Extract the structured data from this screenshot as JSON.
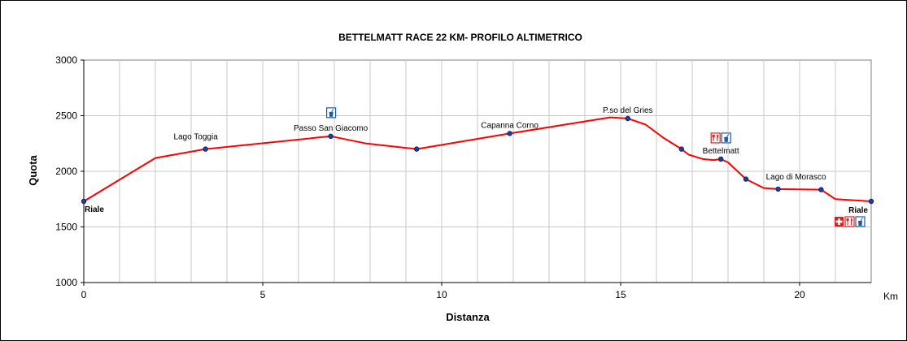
{
  "chart_data": {
    "type": "line",
    "title": "BETTELMATT RACE 22 KM- PROFILO ALTIMETRICO",
    "xlabel": "Distanza",
    "ylabel": "Quota",
    "x_unit": "Km",
    "xlim": [
      0,
      22
    ],
    "ylim": [
      1000,
      3000
    ],
    "x_ticks": [
      "0",
      "5",
      "10",
      "15",
      "20"
    ],
    "y_ticks": [
      "1000",
      "1500",
      "2000",
      "2500",
      "3000"
    ],
    "grid": true,
    "line_color": "#ff0000",
    "marker_color": "#1a3fa0",
    "series": [
      {
        "x": [
          0,
          2,
          3.4,
          6.9,
          7.9,
          9.3,
          11.9,
          14.7,
          15.2,
          15.7,
          16.2,
          16.7,
          16.9,
          17.3,
          17.6,
          17.8,
          18.0,
          18.5,
          19.0,
          19.4,
          20.6,
          21.0,
          22.0
        ],
        "y": [
          1730,
          2120,
          2200,
          2315,
          2250,
          2200,
          2340,
          2485,
          2475,
          2420,
          2300,
          2200,
          2150,
          2110,
          2100,
          2110,
          2080,
          1930,
          1850,
          1840,
          1835,
          1750,
          1730
        ]
      }
    ],
    "markers": [
      {
        "x": 0,
        "y": 1730
      },
      {
        "x": 3.4,
        "y": 2200
      },
      {
        "x": 6.9,
        "y": 2315
      },
      {
        "x": 9.3,
        "y": 2200
      },
      {
        "x": 11.9,
        "y": 2340
      },
      {
        "x": 15.2,
        "y": 2475
      },
      {
        "x": 16.7,
        "y": 2200
      },
      {
        "x": 17.8,
        "y": 2110
      },
      {
        "x": 18.5,
        "y": 1930
      },
      {
        "x": 19.4,
        "y": 1840
      },
      {
        "x": 20.6,
        "y": 1835
      },
      {
        "x": 22.0,
        "y": 1730
      }
    ],
    "annotations": [
      {
        "text": "Riale",
        "x": 0,
        "y": 1730,
        "pos": "below-right",
        "bold": true
      },
      {
        "text": "Lago Toggia",
        "x": 3.4,
        "y": 2200,
        "pos": "above-left",
        "bold": false
      },
      {
        "text": "Passo San Giacomo",
        "x": 6.9,
        "y": 2315,
        "pos": "above",
        "bold": false
      },
      {
        "text": "Capanna Corno",
        "x": 11.9,
        "y": 2340,
        "pos": "above",
        "bold": false
      },
      {
        "text": "P.so del Gries",
        "x": 15.2,
        "y": 2475,
        "pos": "above",
        "bold": false
      },
      {
        "text": "Bettelmatt",
        "x": 17.8,
        "y": 2110,
        "pos": "above",
        "bold": false
      },
      {
        "text": "Lago di Morasco",
        "x": 19.4,
        "y": 1840,
        "pos": "above-right",
        "bold": false
      },
      {
        "text": "Riale",
        "x": 22.0,
        "y": 1730,
        "pos": "below-left",
        "bold": true
      }
    ],
    "services": [
      {
        "x": 6.9,
        "y": 2315,
        "icons": [
          "water-icon"
        ]
      },
      {
        "x": 17.8,
        "y": 2110,
        "icons": [
          "food-icon",
          "water-icon"
        ]
      },
      {
        "x": 22.0,
        "y": 1730,
        "icons": [
          "first-aid-icon",
          "food-icon",
          "water-icon"
        ]
      }
    ],
    "service_colors": {
      "water": "#1e5aa8",
      "food": "#e02020",
      "first_aid": "#e02020"
    }
  }
}
